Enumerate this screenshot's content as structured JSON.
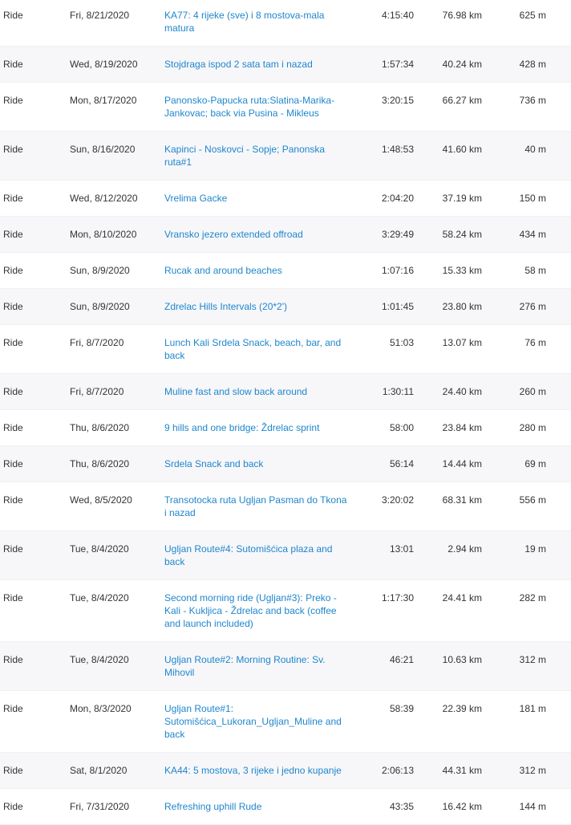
{
  "table": {
    "rows": [
      [
        "Ride",
        "Fri, 8/21/2020",
        "KA77: 4 rijeke (sve) i 8 mostova-mala matura",
        "4:15:40",
        "76.98 km",
        "625 m"
      ],
      [
        "Ride",
        "Wed, 8/19/2020",
        "Stojdraga ispod 2 sata tam i nazad",
        "1:57:34",
        "40.24 km",
        "428 m"
      ],
      [
        "Ride",
        "Mon, 8/17/2020",
        "Panonsko-Papucka ruta:Slatina-Marika-Jankovac; back via Pusina - Mikleus",
        "3:20:15",
        "66.27 km",
        "736 m"
      ],
      [
        "Ride",
        "Sun, 8/16/2020",
        "Kapinci - Noskovci - Sopje; Panonska ruta#1",
        "1:48:53",
        "41.60 km",
        "40 m"
      ],
      [
        "Ride",
        "Wed, 8/12/2020",
        "Vrelima Gacke",
        "2:04:20",
        "37.19 km",
        "150 m"
      ],
      [
        "Ride",
        "Mon, 8/10/2020",
        "Vransko jezero extended offroad",
        "3:29:49",
        "58.24 km",
        "434 m"
      ],
      [
        "Ride",
        "Sun, 8/9/2020",
        "Rucak and around beaches",
        "1:07:16",
        "15.33 km",
        "58 m"
      ],
      [
        "Ride",
        "Sun, 8/9/2020",
        "Zdrelac Hills Intervals (20*2')",
        "1:01:45",
        "23.80 km",
        "276 m"
      ],
      [
        "Ride",
        "Fri, 8/7/2020",
        "Lunch Kali Srdela Snack, beach, bar, and back",
        "51:03",
        "13.07 km",
        "76 m"
      ],
      [
        "Ride",
        "Fri, 8/7/2020",
        "Muline fast and slow back around",
        "1:30:11",
        "24.40 km",
        "260 m"
      ],
      [
        "Ride",
        "Thu, 8/6/2020",
        "9 hills and one bridge: Ždrelac sprint",
        "58:00",
        "23.84 km",
        "280 m"
      ],
      [
        "Ride",
        "Thu, 8/6/2020",
        "Srdela Snack and back",
        "56:14",
        "14.44 km",
        "69 m"
      ],
      [
        "Ride",
        "Wed, 8/5/2020",
        "Transotocka ruta Ugljan Pasman do Tkona i nazad",
        "3:20:02",
        "68.31 km",
        "556 m"
      ],
      [
        "Ride",
        "Tue, 8/4/2020",
        "Ugljan Route#4: Sutomišćica plaza and back",
        "13:01",
        "2.94 km",
        "19 m"
      ],
      [
        "Ride",
        "Tue, 8/4/2020",
        "Second morning ride (Ugljan#3): Preko - Kali - Kukljica - Ždrelac and back (coffee and launch included)",
        "1:17:30",
        "24.41 km",
        "282 m"
      ],
      [
        "Ride",
        "Tue, 8/4/2020",
        "Ugljan Route#2: Morning Routine: Sv. Mihovil",
        "46:21",
        "10.63 km",
        "312 m"
      ],
      [
        "Ride",
        "Mon, 8/3/2020",
        "Ugljan Route#1: Sutomišćica_Lukoran_Ugljan_Muline and back",
        "58:39",
        "22.39 km",
        "181 m"
      ],
      [
        "Ride",
        "Sat, 8/1/2020",
        "KA44: 5 mostova, 3 rijeke i jedno kupanje",
        "2:06:13",
        "44.31 km",
        "312 m"
      ],
      [
        "Ride",
        "Fri, 7/31/2020",
        "Refreshing uphill Rude",
        "43:35",
        "16.42 km",
        "144 m"
      ]
    ]
  }
}
